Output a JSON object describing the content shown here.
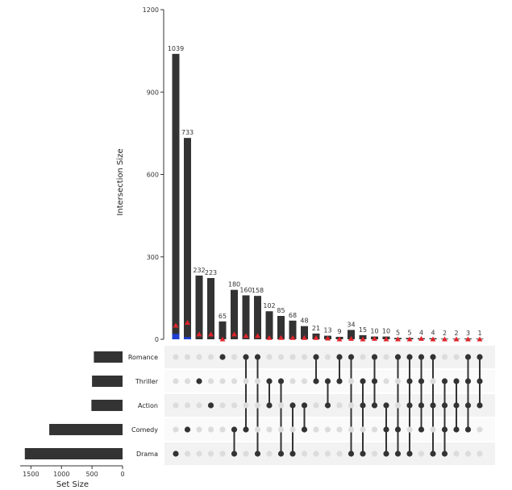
{
  "chart_data": {
    "type": "upset",
    "ylabel": "Intersection Size",
    "xlabel_sets": "Set Size",
    "ylim": [
      0,
      1200
    ],
    "yticks": [
      0,
      300,
      600,
      900,
      1200
    ],
    "set_size_ticks": [
      1500,
      1000,
      500,
      0
    ],
    "sets": [
      "Romance",
      "Thriller",
      "Action",
      "Comedy",
      "Drama"
    ],
    "set_sizes": [
      470,
      500,
      510,
      1200,
      1600
    ],
    "intersections": [
      {
        "members": [
          "Drama"
        ],
        "size": 1039
      },
      {
        "members": [
          "Comedy"
        ],
        "size": 733
      },
      {
        "members": [
          "Thriller"
        ],
        "size": 232
      },
      {
        "members": [
          "Action"
        ],
        "size": 223
      },
      {
        "members": [
          "Romance"
        ],
        "size": 65
      },
      {
        "members": [
          "Comedy",
          "Drama"
        ],
        "size": 180
      },
      {
        "members": [
          "Romance",
          "Comedy"
        ],
        "size": 160
      },
      {
        "members": [
          "Romance",
          "Drama"
        ],
        "size": 158
      },
      {
        "members": [
          "Thriller",
          "Action"
        ],
        "size": 102
      },
      {
        "members": [
          "Thriller",
          "Drama"
        ],
        "size": 85
      },
      {
        "members": [
          "Action",
          "Drama"
        ],
        "size": 68
      },
      {
        "members": [
          "Action",
          "Comedy"
        ],
        "size": 48
      },
      {
        "members": [
          "Romance",
          "Thriller"
        ],
        "size": 21
      },
      {
        "members": [
          "Thriller",
          "Action"
        ],
        "size": 13
      },
      {
        "members": [
          "Romance",
          "Thriller"
        ],
        "size": 9
      },
      {
        "members": [
          "Romance",
          "Drama"
        ],
        "size": 34
      },
      {
        "members": [
          "Thriller",
          "Action",
          "Drama"
        ],
        "size": 15
      },
      {
        "members": [
          "Romance",
          "Thriller",
          "Action"
        ],
        "size": 10
      },
      {
        "members": [
          "Action",
          "Comedy",
          "Drama"
        ],
        "size": 10
      },
      {
        "members": [
          "Romance",
          "Comedy",
          "Drama"
        ],
        "size": 5
      },
      {
        "members": [
          "Romance",
          "Thriller",
          "Action",
          "Drama"
        ],
        "size": 5
      },
      {
        "members": [
          "Romance",
          "Thriller",
          "Action",
          "Comedy"
        ],
        "size": 4
      },
      {
        "members": [
          "Romance",
          "Action",
          "Drama"
        ],
        "size": 4
      },
      {
        "members": [
          "Thriller",
          "Action",
          "Comedy",
          "Drama"
        ],
        "size": 2
      },
      {
        "members": [
          "Thriller",
          "Action",
          "Comedy"
        ],
        "size": 2
      },
      {
        "members": [
          "Romance",
          "Thriller",
          "Action",
          "Comedy"
        ],
        "size": 3
      },
      {
        "members": [
          "Romance",
          "Thriller",
          "Action"
        ],
        "size": 1
      }
    ],
    "blue_marker_values": [
      20,
      8,
      0,
      0,
      0,
      0,
      0,
      0,
      0,
      0,
      0,
      0,
      0,
      0,
      0,
      0,
      0,
      0,
      0,
      0,
      0,
      0,
      0,
      0,
      0,
      0,
      0
    ],
    "red_marker_values": [
      50,
      60,
      18,
      18,
      0,
      18,
      12,
      12,
      5,
      5,
      5,
      5,
      5,
      3,
      0,
      2,
      0,
      2,
      0,
      0,
      0,
      2,
      0,
      0,
      0,
      0,
      0
    ],
    "colors": {
      "bar": "#333333",
      "dot_active": "#333333",
      "dot_inactive": "#dcdcdc",
      "stripe": "#f2f2f2",
      "blue": "#1f3fd1",
      "red": "#e0242b"
    }
  }
}
